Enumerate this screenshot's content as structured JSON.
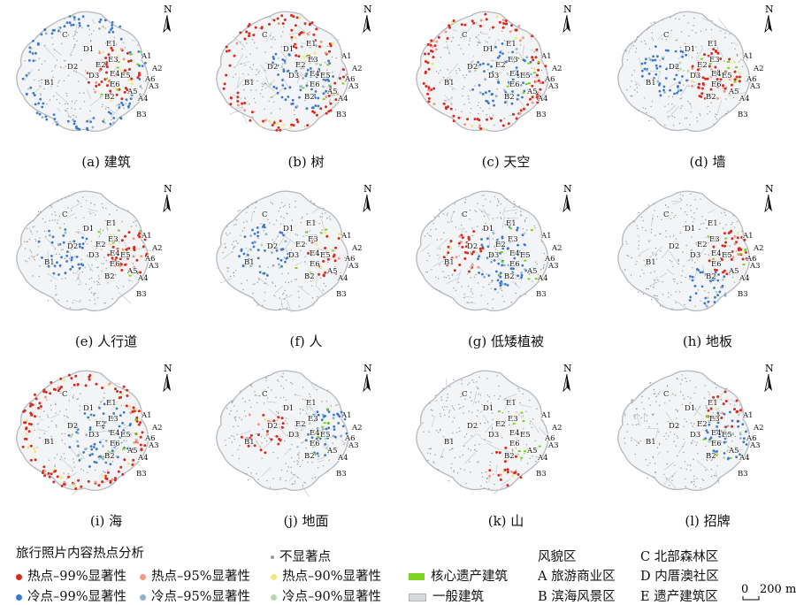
{
  "panels": [
    {
      "caption": "(a) 建筑",
      "hot": "core",
      "cold": "edges",
      "hot_strength": 0.9
    },
    {
      "caption": "(b) 树",
      "hot": "mixed",
      "cold": "center",
      "hot_strength": 0.7
    },
    {
      "caption": "(c) 天空",
      "hot": "edges",
      "cold": "center",
      "hot_strength": 0.9
    },
    {
      "caption": "(d) 墙",
      "hot": "core",
      "cold": "west",
      "hot_strength": 0.8
    },
    {
      "caption": "(e) 人行道",
      "hot": "east",
      "cold": "west",
      "hot_strength": 0.8
    },
    {
      "caption": "(f) 人",
      "hot": "east",
      "cold": "west",
      "hot_strength": 0.7
    },
    {
      "caption": "(g) 低矮植被",
      "hot": "west",
      "cold": "center",
      "hot_strength": 0.6
    },
    {
      "caption": "(h) 地板",
      "hot": "east",
      "cold": "south",
      "hot_strength": 0.7
    },
    {
      "caption": "(i) 海",
      "hot": "edges",
      "cold": "center",
      "hot_strength": 1.0
    },
    {
      "caption": "(j) 地面",
      "hot": "west",
      "cold": "east",
      "hot_strength": 0.5
    },
    {
      "caption": "(k) 山",
      "hot": "south",
      "cold": "none",
      "hot_strength": 0.6
    },
    {
      "caption": "(l) 招牌",
      "hot": "northeast",
      "cold": "east",
      "hot_strength": 0.5
    }
  ],
  "map_labels": [
    "C",
    "D1",
    "E1",
    "D2",
    "E2",
    "E3",
    "A1",
    "D3",
    "E4",
    "E5",
    "A2",
    "A6",
    "E6",
    "A3",
    "B1",
    "B2",
    "A5",
    "A4",
    "B3"
  ],
  "north_label": "N",
  "legend": {
    "title": "旅行照片内容热点分析",
    "hot99": "热点–99%显著性",
    "hot95": "热点–95%显著性",
    "hot90": "热点–90%显著性",
    "cold99": "冷点–99%显著性",
    "cold95": "冷点–95%显著性",
    "cold90": "冷点–90%显著性",
    "not_sig": "不显著点",
    "heritage": "核心遗产建筑",
    "general": "一般建筑",
    "zones_title": "风貌区",
    "zone_a": "A 旅游商业区",
    "zone_b": "B 滨海风景区",
    "zone_c": "C 北部森林区",
    "zone_d": "D 内厝澳社区",
    "zone_e": "E 遗产建筑区"
  },
  "colors": {
    "hot99": "#d62b1f",
    "hot95": "#f19a8a",
    "hot90": "#efe87a",
    "cold99": "#3c78d0",
    "cold95": "#8fb2cf",
    "cold90": "#b9d5b4",
    "not_sig": "#9a9a9a",
    "heritage": "#7ed321",
    "general": "#d5d8dc"
  },
  "scale": {
    "zero": "0",
    "label": "200 m"
  }
}
